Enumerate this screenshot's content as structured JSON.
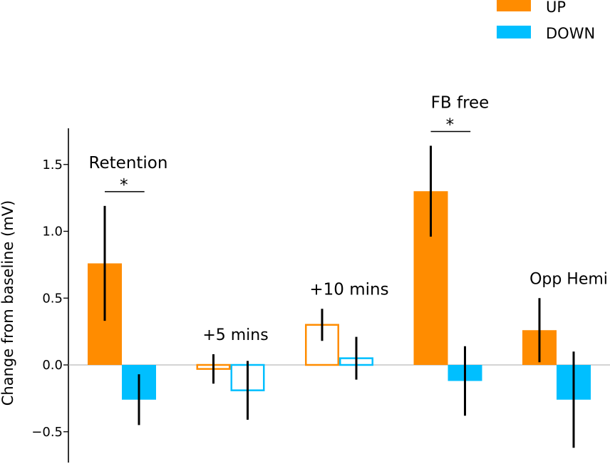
{
  "chart_data": {
    "type": "bar",
    "ylabel": "Change from baseline (mV)",
    "ylim": [
      -0.73,
      1.77
    ],
    "yticks": [
      -0.5,
      0.0,
      0.5,
      1.0,
      1.5
    ],
    "ytick_labels": [
      "−0.5",
      "0.0",
      "0.5",
      "1.0",
      "1.5"
    ],
    "grid": false,
    "legend_position": "top-right",
    "series": [
      {
        "name": "UP",
        "color": "#ff8c00"
      },
      {
        "name": "DOWN",
        "color": "#00bfff"
      }
    ],
    "groups": [
      {
        "label": "Retention",
        "filled": true,
        "significance": "*",
        "values": [
          0.76,
          -0.26
        ],
        "errors": [
          0.43,
          0.19
        ]
      },
      {
        "label": "+5 mins",
        "filled": false,
        "significance": "",
        "values": [
          -0.03,
          -0.19
        ],
        "errors": [
          0.11,
          0.22
        ]
      },
      {
        "label": "+10 mins",
        "filled": false,
        "significance": "",
        "values": [
          0.3,
          0.05
        ],
        "errors": [
          0.12,
          0.16
        ]
      },
      {
        "label": "FB free",
        "filled": true,
        "significance": "*",
        "values": [
          1.3,
          -0.12
        ],
        "errors": [
          0.34,
          0.26
        ]
      },
      {
        "label": "Opp Hemi",
        "filled": true,
        "significance": "",
        "values": [
          0.26,
          -0.26
        ],
        "errors": [
          0.24,
          0.36
        ]
      }
    ]
  }
}
